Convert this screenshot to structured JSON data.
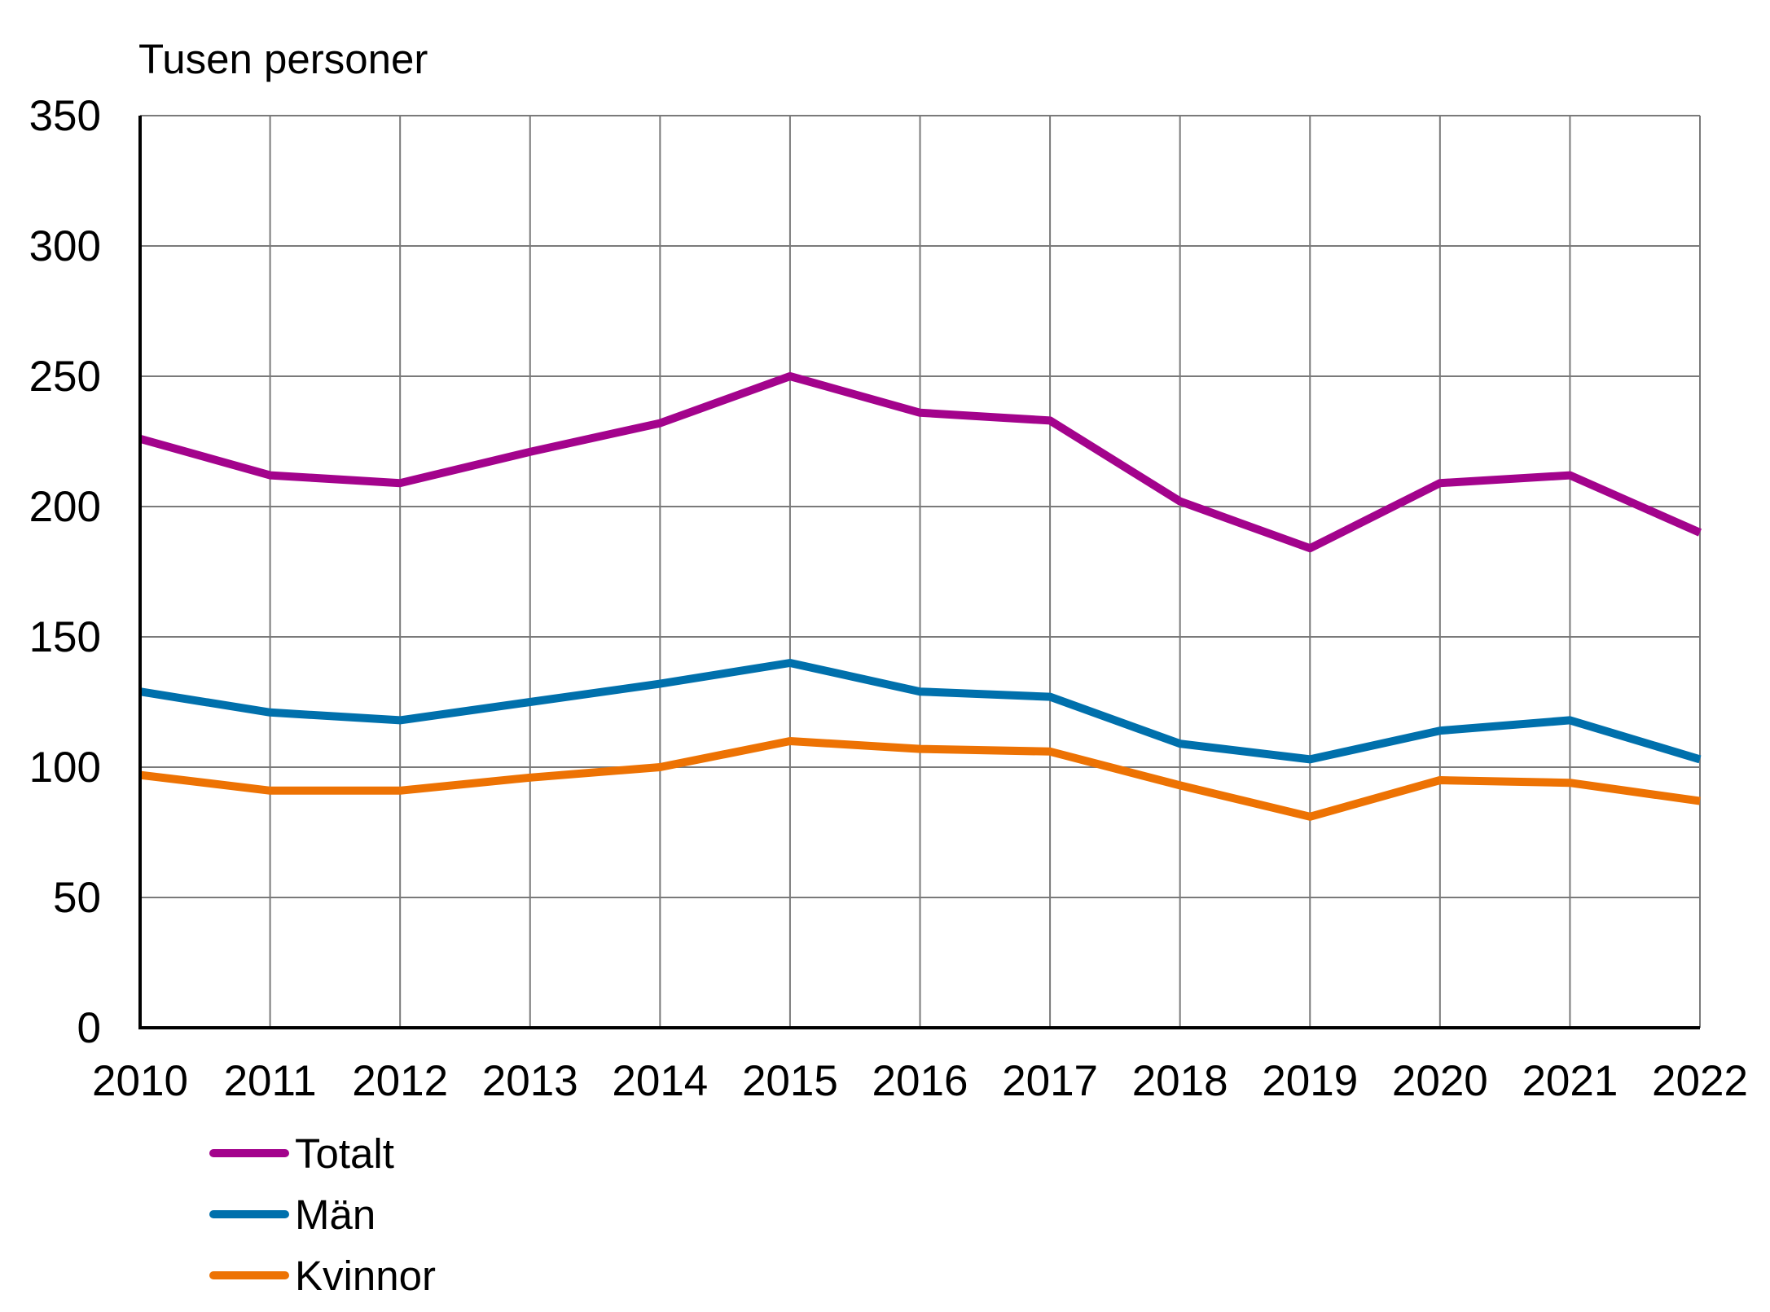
{
  "chart_data": {
    "type": "line",
    "title": "",
    "ylabel": "Tusen personer",
    "xlabel": "",
    "ylim": [
      0,
      350
    ],
    "yticks": [
      0,
      50,
      100,
      150,
      200,
      250,
      300,
      350
    ],
    "ytick_labels": [
      "0",
      "50",
      "100",
      "150",
      "200",
      "250",
      "300",
      "350"
    ],
    "grid": true,
    "legend_position": "bottom-left",
    "categories": [
      "2010",
      "2011",
      "2012",
      "2013",
      "2014",
      "2015",
      "2016",
      "2017",
      "2018",
      "2019",
      "2020",
      "2021",
      "2022"
    ],
    "series": [
      {
        "name": "Totalt",
        "color": "#A3038C",
        "values": [
          226,
          212,
          209,
          221,
          232,
          250,
          236,
          233,
          202,
          184,
          209,
          212,
          190
        ]
      },
      {
        "name": "Män",
        "color": "#0070AC",
        "values": [
          129,
          121,
          118,
          125,
          132,
          140,
          129,
          127,
          109,
          103,
          114,
          118,
          103
        ]
      },
      {
        "name": "Kvinnor",
        "color": "#ED7203",
        "values": [
          97,
          91,
          91,
          96,
          100,
          110,
          107,
          106,
          93,
          81,
          95,
          94,
          87
        ]
      }
    ]
  }
}
